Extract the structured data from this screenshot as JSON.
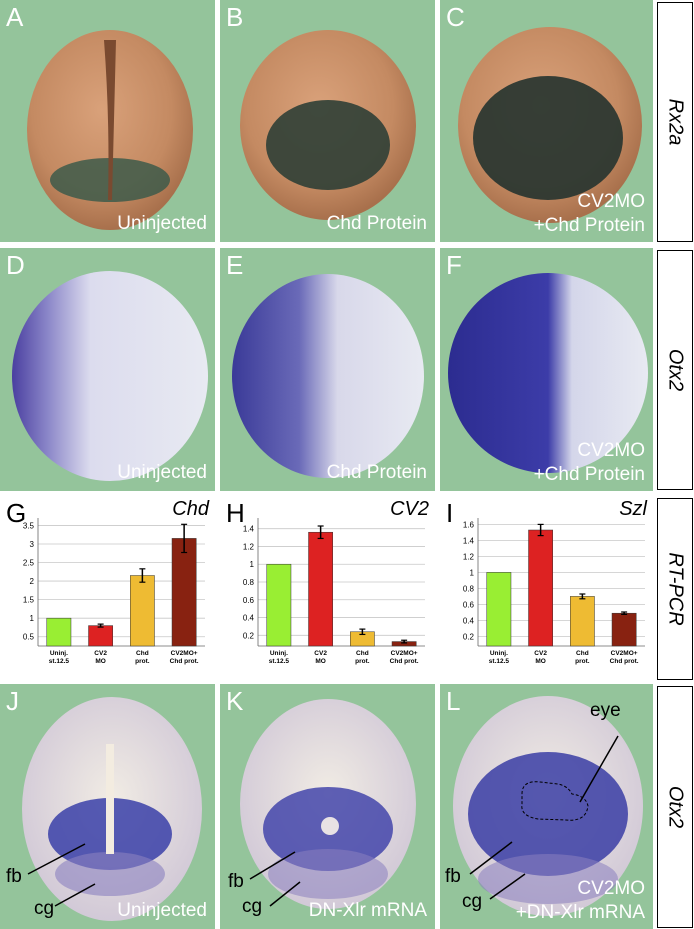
{
  "row1": {
    "side_label": "Rx2a",
    "panels": [
      {
        "letter": "A",
        "caption": [
          "Uninjected"
        ]
      },
      {
        "letter": "B",
        "caption": [
          "Chd Protein"
        ]
      },
      {
        "letter": "C",
        "caption": [
          "CV2MO",
          "+Chd Protein"
        ]
      }
    ]
  },
  "row2": {
    "side_label": "Otx2",
    "panels": [
      {
        "letter": "D",
        "caption": [
          "Uninjected"
        ]
      },
      {
        "letter": "E",
        "caption": [
          "Chd Protein"
        ]
      },
      {
        "letter": "F",
        "caption": [
          "CV2MO",
          "+Chd Protein"
        ]
      }
    ]
  },
  "row3": {
    "side_label": "RT-PCR"
  },
  "row4": {
    "side_label": "Otx2",
    "panels": [
      {
        "letter": "J",
        "caption": [
          "Uninjected"
        ],
        "labels": {
          "fb": "fb",
          "cg": "cg"
        }
      },
      {
        "letter": "K",
        "caption": [
          "DN-Xlr mRNA"
        ],
        "labels": {
          "fb": "fb",
          "cg": "cg"
        }
      },
      {
        "letter": "L",
        "caption": [
          "CV2MO",
          "+DN-Xlr mRNA"
        ],
        "labels": {
          "fb": "fb",
          "cg": "cg",
          "eye": "eye"
        }
      }
    ]
  },
  "chart_data": [
    {
      "type": "bar",
      "letter": "G",
      "title": "Chd",
      "categories": [
        [
          "Uninj.",
          "st.12.5"
        ],
        [
          "CV2",
          "MO"
        ],
        [
          "Chd",
          "prot."
        ],
        [
          "CV2MO+",
          "Chd prot."
        ]
      ],
      "values": [
        1.0,
        0.8,
        2.15,
        3.15
      ],
      "errors": [
        0.0,
        0.04,
        0.18,
        0.38
      ],
      "colors": [
        "#99ee33",
        "#dd2222",
        "#eebb33",
        "#882211"
      ],
      "yticks": [
        0.5,
        1,
        1.5,
        2,
        2.5,
        3,
        3.5
      ],
      "ytick_labels": [
        "0.5",
        "1",
        "1.5",
        "2",
        "2.5",
        "3",
        "3.5"
      ],
      "ylim": [
        0.25,
        3.7
      ],
      "grid": true
    },
    {
      "type": "bar",
      "letter": "H",
      "title": "CV2",
      "categories": [
        [
          "Uninj.",
          "st.12.5"
        ],
        [
          "CV2",
          "MO"
        ],
        [
          "Chd",
          "prot."
        ],
        [
          "CV2MO+",
          "Chd prot."
        ]
      ],
      "values": [
        1.0,
        1.36,
        0.24,
        0.13
      ],
      "errors": [
        0.0,
        0.07,
        0.03,
        0.015
      ],
      "colors": [
        "#99ee33",
        "#dd2222",
        "#eebb33",
        "#882211"
      ],
      "yticks": [
        0.2,
        0.4,
        0.6,
        0.8,
        1,
        1.2,
        1.4
      ],
      "ytick_labels": [
        "0.2",
        "0.4",
        "0.6",
        "0.8",
        "1",
        "1.2",
        "1.4"
      ],
      "ylim": [
        0.08,
        1.52
      ],
      "grid": true
    },
    {
      "type": "bar",
      "letter": "I",
      "title": "Szl",
      "categories": [
        [
          "Uninj.",
          "st.12.5"
        ],
        [
          "CV2",
          "MO"
        ],
        [
          "Chd",
          "prot."
        ],
        [
          "CV2MO+",
          "Chd prot."
        ]
      ],
      "values": [
        1.0,
        1.53,
        0.7,
        0.49
      ],
      "errors": [
        0.0,
        0.07,
        0.03,
        0.015
      ],
      "colors": [
        "#99ee33",
        "#dd2222",
        "#eebb33",
        "#882211"
      ],
      "yticks": [
        0.2,
        0.4,
        0.6,
        0.8,
        1,
        1.2,
        1.4,
        1.6
      ],
      "ytick_labels": [
        "0.2",
        "0.4",
        "0.6",
        "0.8",
        "1",
        "1.2",
        "1.4",
        "1.6"
      ],
      "ylim": [
        0.08,
        1.68
      ],
      "grid": true
    }
  ]
}
